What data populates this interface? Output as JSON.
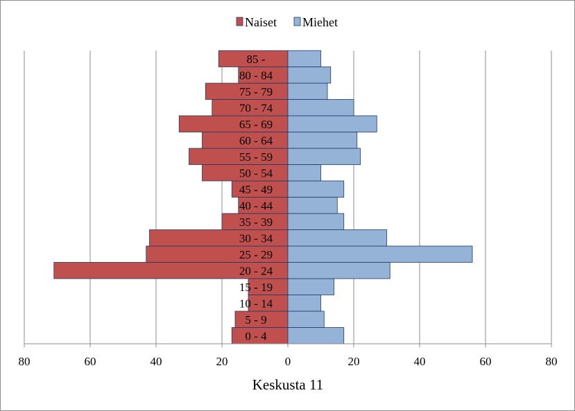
{
  "chart_data": {
    "type": "bar",
    "orientation": "horizontal",
    "layout": "population-pyramid",
    "title": "Keskusta 11",
    "xlabel": "Keskusta 11",
    "ylabel": "",
    "categories": [
      "0 - 4",
      "5 - 9",
      "10 - 14",
      "15 - 19",
      "20 - 24",
      "25 - 29",
      "30 - 34",
      "35 - 39",
      "40 - 44",
      "45 - 49",
      "50 - 54",
      "55 - 59",
      "60 - 64",
      "65 - 69",
      "70 - 74",
      "75 - 79",
      "80 - 84",
      "85 -"
    ],
    "series": [
      {
        "name": "Naiset",
        "side": "left",
        "color": "#c0504d",
        "values": [
          17,
          16,
          12,
          12,
          71,
          43,
          42,
          20,
          15,
          17,
          26,
          30,
          26,
          33,
          23,
          25,
          15,
          21
        ]
      },
      {
        "name": "Miehet",
        "side": "right",
        "color": "#95b3d7",
        "values": [
          17,
          11,
          10,
          14,
          31,
          56,
          30,
          17,
          15,
          17,
          10,
          22,
          21,
          27,
          20,
          12,
          13,
          10
        ]
      }
    ],
    "xlim": [
      -80,
      80
    ],
    "xticks": [
      -80,
      -60,
      -40,
      -20,
      0,
      20,
      40,
      60,
      80
    ],
    "xtick_labels": [
      "80",
      "60",
      "40",
      "20",
      "0",
      "20",
      "40",
      "60",
      "80"
    ],
    "grid": "vertical",
    "legend": "top-center",
    "edge_color": "#1f3864"
  }
}
